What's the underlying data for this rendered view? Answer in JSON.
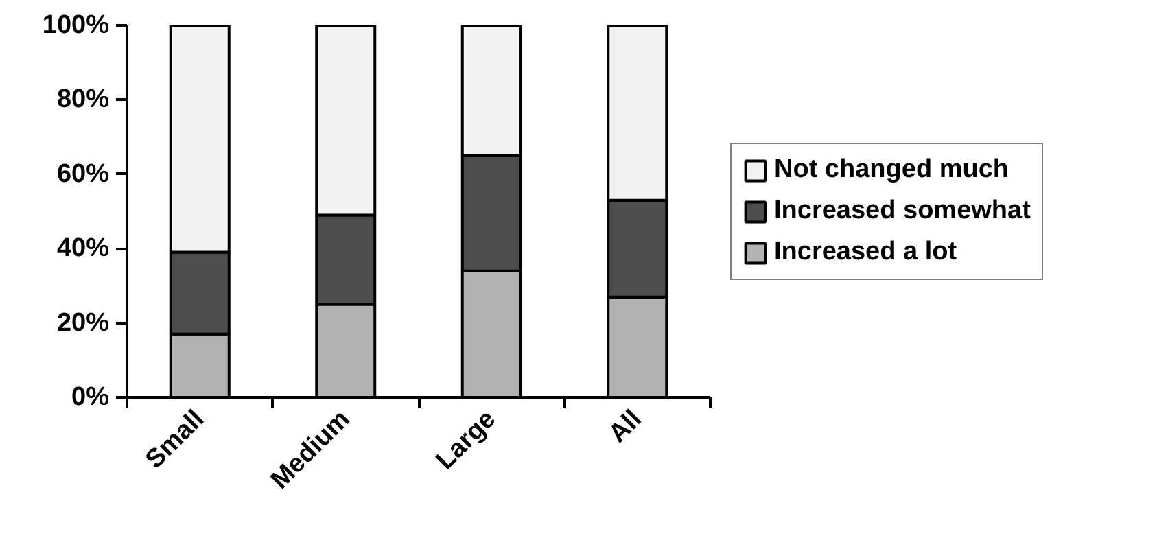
{
  "chart_data": {
    "type": "bar",
    "stacked": true,
    "categories": [
      "Small",
      "Medium",
      "Large",
      "All"
    ],
    "series": [
      {
        "name": "Increased a lot",
        "color": "#b2b2b2",
        "values": [
          17,
          25,
          34,
          27
        ]
      },
      {
        "name": "Increased somewhat",
        "color": "#4d4d4d",
        "values": [
          22,
          24,
          31,
          26
        ]
      },
      {
        "name": "Not changed much",
        "color": "#f2f2f2",
        "values": [
          61,
          51,
          35,
          47
        ]
      }
    ],
    "ylim": [
      0,
      100
    ],
    "yticks": [
      {
        "value": 0,
        "label": "0%"
      },
      {
        "value": 20,
        "label": "20%"
      },
      {
        "value": 40,
        "label": "40%"
      },
      {
        "value": 60,
        "label": "60%"
      },
      {
        "value": 80,
        "label": "80%"
      },
      {
        "value": 100,
        "label": "100%"
      }
    ],
    "legend": "right"
  }
}
